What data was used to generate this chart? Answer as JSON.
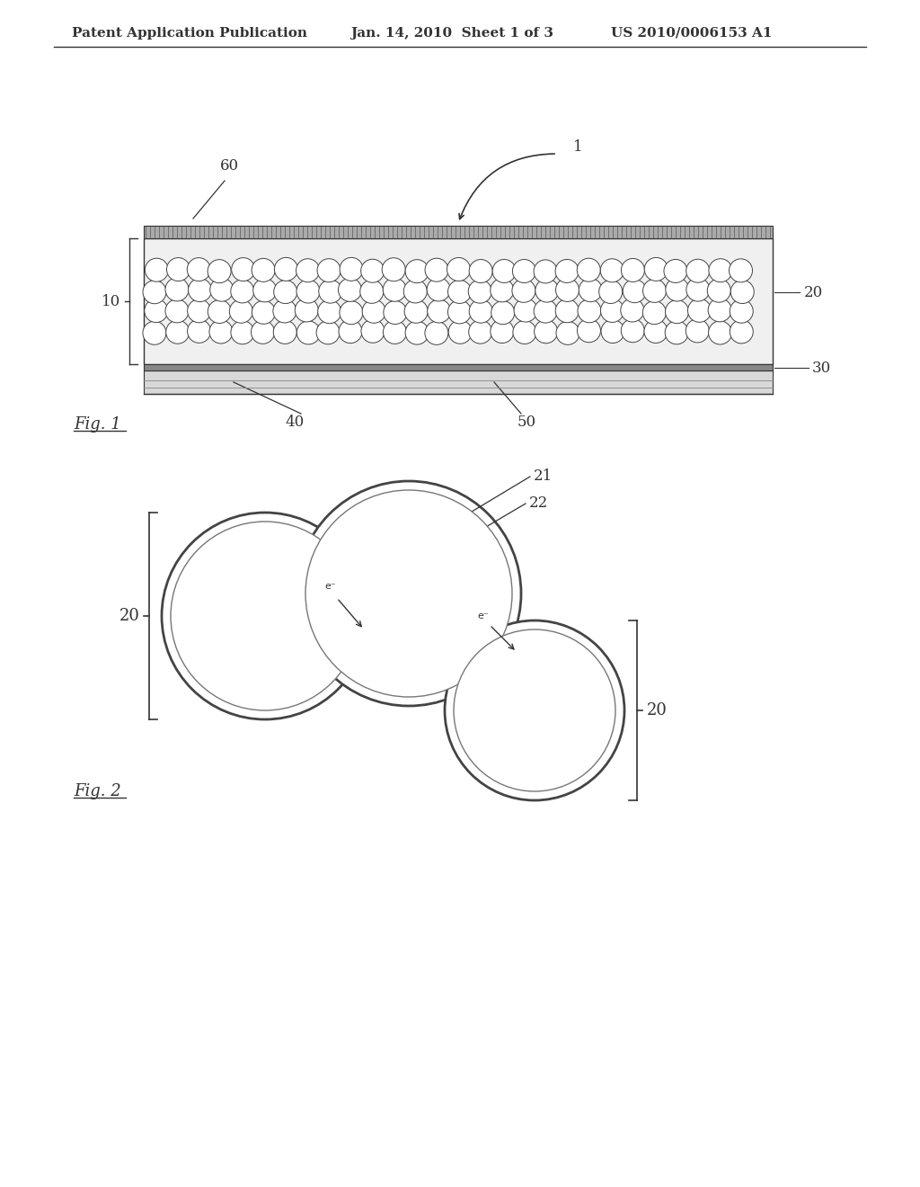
{
  "header_left": "Patent Application Publication",
  "header_mid": "Jan. 14, 2010  Sheet 1 of 3",
  "header_right": "US 2010/0006153 A1",
  "bg_color": "#ffffff",
  "line_color": "#333333",
  "fig1_label": "Fig. 1",
  "fig2_label": "Fig. 2",
  "label_1": "1",
  "label_10": "10",
  "label_20_right": "20",
  "label_30": "30",
  "label_40": "40",
  "label_50": "50",
  "label_60": "60",
  "label_21": "21",
  "label_22": "22",
  "label_20_left": "20",
  "label_20_bot": "20"
}
